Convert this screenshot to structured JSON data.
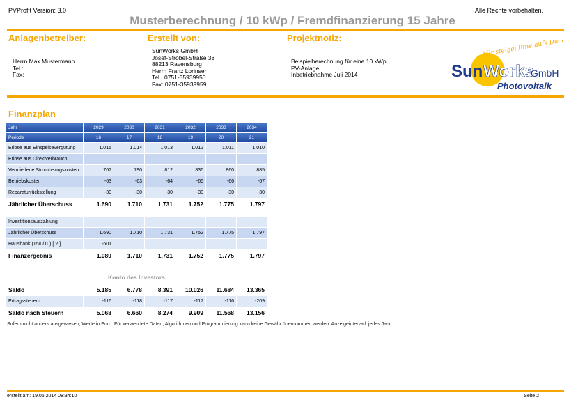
{
  "header": {
    "version": "PVProfit Version: 3.0",
    "rights": "Alle Rechte vorbehalten.",
    "title": "Musterberechnung / 10 kWp / Fremdfinanzierung 15 Jahre"
  },
  "sections": {
    "operator": {
      "heading": "Anlagenbetreiber:",
      "lines": [
        "Herrn Max Mustermann",
        "Tel.:",
        "Fax:"
      ]
    },
    "created_by": {
      "heading": "Erstellt von:",
      "lines": [
        "SunWorks GmbH",
        "Josef-Strobel-Straße 38",
        "88213 Ravensburg",
        "Herrn Franz Lorinser",
        "Tel.: 0751-35939950",
        "Fax: 0751-35939959"
      ]
    },
    "project": {
      "heading": "Projektnotiz:",
      "lines": [
        "Beispielberechnung für eine 10 kWp",
        "PV-Anlage",
        "Inbetriebnahme Juli 2014"
      ]
    }
  },
  "logo": {
    "tagline": "Mir steigei Ihne aufs Dach ...",
    "brand_sun": "Sun",
    "brand_works": "Works",
    "brand_gmbh": "GmbH",
    "brand_pv": "Photovoltaik",
    "color_orange": "#f7a600",
    "color_blue": "#1e3a8a"
  },
  "finance": {
    "heading": "Finanzplan",
    "header_row": {
      "label": "Jahr",
      "values": [
        "2029",
        "2030",
        "2031",
        "2032",
        "2033",
        "2034"
      ]
    },
    "period_row": {
      "label": "Periode",
      "values": [
        "16",
        "17",
        "18",
        "19",
        "20",
        "21"
      ]
    },
    "block1": [
      {
        "label": "Erlöse aus Einspeisevergütung",
        "values": [
          "1.015",
          "1.014",
          "1.013",
          "1.012",
          "1.011",
          "1.010"
        ]
      },
      {
        "label": "Erlöse aus Direktverbrauch",
        "values": [
          "",
          "",
          "",
          "",
          "",
          ""
        ]
      },
      {
        "label": "Vermiedene Strombezugskosten",
        "values": [
          "767",
          "790",
          "812",
          "836",
          "860",
          "885"
        ]
      },
      {
        "label": "Betriebskosten",
        "values": [
          "-63",
          "-63",
          "-64",
          "-65",
          "-66",
          "-67"
        ]
      },
      {
        "label": "Reparaturrückstellung",
        "values": [
          "-30",
          "-30",
          "-30",
          "-30",
          "-30",
          "-30"
        ]
      }
    ],
    "sum1": {
      "label": "Jährlicher Überschuss",
      "values": [
        "1.690",
        "1.710",
        "1.731",
        "1.752",
        "1.775",
        "1.797"
      ]
    },
    "block2": [
      {
        "label": "Investitionsauszahlung",
        "values": [
          "",
          "",
          "",
          "",
          "",
          ""
        ]
      },
      {
        "label": "Jährlicher Überschuss",
        "values": [
          "1.690",
          "1.710",
          "1.731",
          "1.752",
          "1.775",
          "1.797"
        ]
      },
      {
        "label": "Hausbank (15/0/10) [ ? ]",
        "values": [
          "-601",
          "",
          "",
          "",
          "",
          ""
        ]
      }
    ],
    "sum2": {
      "label": "Finanzergebnis",
      "values": [
        "1.089",
        "1.710",
        "1.731",
        "1.752",
        "1.775",
        "1.797"
      ]
    },
    "investor_title": "Konto des Investors",
    "saldo": {
      "label": "Saldo",
      "values": [
        "5.185",
        "6.778",
        "8.391",
        "10.026",
        "11.684",
        "13.365"
      ]
    },
    "taxes": {
      "label": "Ertragssteuern",
      "values": [
        "-116",
        "-118",
        "-117",
        "-117",
        "-116",
        "-209"
      ]
    },
    "saldo_after": {
      "label": "Saldo nach Steuern",
      "values": [
        "5.068",
        "6.660",
        "8.274",
        "9.909",
        "11.568",
        "13.156"
      ]
    }
  },
  "note": "Sofern nicht anders ausgewiesen, Werte in Euro. Für verwendete Daten, Algorithmen und Programmierung kann keine Gewähr übernommen werden. Anzeigeintervall: jedes Jahr.",
  "footer": {
    "created": "erstellt am: 19.05.2014 08:34:10",
    "page": "Seite 2"
  }
}
